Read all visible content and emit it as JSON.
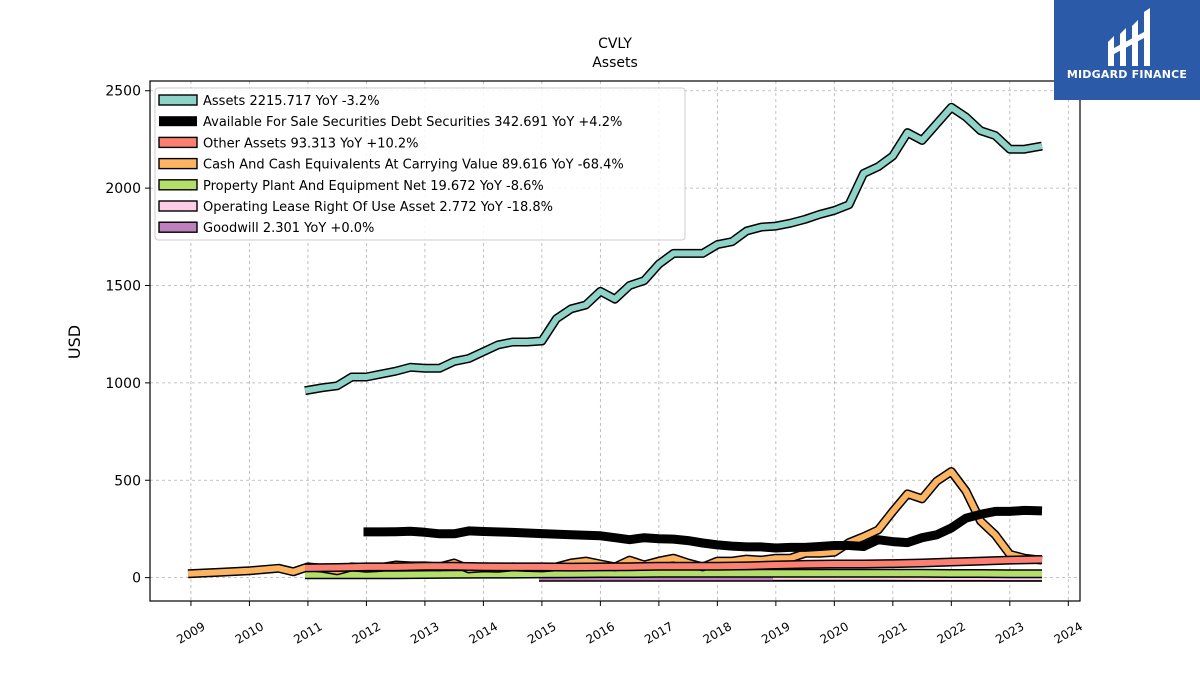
{
  "brand": {
    "name": "MIDGARD FINANCE",
    "color": "#2b5aa8"
  },
  "chart_data": {
    "type": "line",
    "title": "CVLY",
    "subtitle": "Assets",
    "xlabel": "",
    "ylabel": "USD",
    "xlim": [
      2008.3,
      2024.2
    ],
    "ylim": [
      -120,
      2550
    ],
    "x_ticks": [
      "2009",
      "2010",
      "2011",
      "2012",
      "2013",
      "2014",
      "2015",
      "2016",
      "2017",
      "2018",
      "2019",
      "2020",
      "2021",
      "2022",
      "2023",
      "2024"
    ],
    "y_ticks": [
      0,
      500,
      1000,
      1500,
      2000,
      2500
    ],
    "grid": true,
    "legend_position": "top-left",
    "series": [
      {
        "name": "Assets",
        "legend_label": "Assets  2215.717 YoY -3.2%",
        "color": "#8dd3c7",
        "width": 6,
        "points": [
          [
            2010.95,
            960
          ],
          [
            2011.25,
            975
          ],
          [
            2011.5,
            985
          ],
          [
            2011.75,
            1030
          ],
          [
            2012.0,
            1030
          ],
          [
            2012.25,
            1045
          ],
          [
            2012.5,
            1060
          ],
          [
            2012.75,
            1080
          ],
          [
            2013.0,
            1075
          ],
          [
            2013.25,
            1075
          ],
          [
            2013.5,
            1110
          ],
          [
            2013.75,
            1125
          ],
          [
            2014.0,
            1160
          ],
          [
            2014.25,
            1195
          ],
          [
            2014.5,
            1210
          ],
          [
            2014.75,
            1210
          ],
          [
            2015.0,
            1215
          ],
          [
            2015.25,
            1330
          ],
          [
            2015.5,
            1380
          ],
          [
            2015.75,
            1400
          ],
          [
            2016.0,
            1470
          ],
          [
            2016.25,
            1430
          ],
          [
            2016.5,
            1500
          ],
          [
            2016.75,
            1525
          ],
          [
            2017.0,
            1610
          ],
          [
            2017.25,
            1665
          ],
          [
            2017.5,
            1665
          ],
          [
            2017.75,
            1665
          ],
          [
            2018.0,
            1710
          ],
          [
            2018.25,
            1725
          ],
          [
            2018.5,
            1780
          ],
          [
            2018.75,
            1800
          ],
          [
            2019.0,
            1805
          ],
          [
            2019.25,
            1820
          ],
          [
            2019.5,
            1840
          ],
          [
            2019.75,
            1865
          ],
          [
            2020.0,
            1885
          ],
          [
            2020.25,
            1915
          ],
          [
            2020.5,
            2075
          ],
          [
            2020.75,
            2110
          ],
          [
            2021.0,
            2165
          ],
          [
            2021.25,
            2285
          ],
          [
            2021.5,
            2245
          ],
          [
            2021.75,
            2330
          ],
          [
            2022.0,
            2415
          ],
          [
            2022.25,
            2365
          ],
          [
            2022.5,
            2295
          ],
          [
            2022.75,
            2270
          ],
          [
            2023.0,
            2200
          ],
          [
            2023.25,
            2200
          ],
          [
            2023.55,
            2215.717
          ]
        ]
      },
      {
        "name": "Available For Sale Securities Debt Securities",
        "legend_label": "Available For Sale Securities Debt Securities  342.691 YoY +4.2%",
        "color": "#000000",
        "width": 9,
        "points": [
          [
            2011.95,
            235
          ],
          [
            2012.25,
            235
          ],
          [
            2012.5,
            236
          ],
          [
            2012.75,
            238
          ],
          [
            2013.0,
            233
          ],
          [
            2013.25,
            225
          ],
          [
            2013.5,
            225
          ],
          [
            2013.75,
            240
          ],
          [
            2014.0,
            237
          ],
          [
            2014.5,
            232
          ],
          [
            2015.0,
            226
          ],
          [
            2015.5,
            220
          ],
          [
            2016.0,
            215
          ],
          [
            2016.25,
            205
          ],
          [
            2016.5,
            195
          ],
          [
            2016.75,
            205
          ],
          [
            2017.0,
            200
          ],
          [
            2017.25,
            198
          ],
          [
            2017.5,
            190
          ],
          [
            2017.75,
            178
          ],
          [
            2018.0,
            168
          ],
          [
            2018.25,
            162
          ],
          [
            2018.5,
            158
          ],
          [
            2018.75,
            158
          ],
          [
            2019.0,
            152
          ],
          [
            2019.25,
            155
          ],
          [
            2019.5,
            155
          ],
          [
            2019.75,
            160
          ],
          [
            2020.0,
            165
          ],
          [
            2020.25,
            165
          ],
          [
            2020.5,
            160
          ],
          [
            2020.75,
            195
          ],
          [
            2021.0,
            185
          ],
          [
            2021.25,
            180
          ],
          [
            2021.5,
            205
          ],
          [
            2021.75,
            220
          ],
          [
            2022.0,
            255
          ],
          [
            2022.25,
            305
          ],
          [
            2022.5,
            325
          ],
          [
            2022.75,
            340
          ],
          [
            2023.0,
            340
          ],
          [
            2023.25,
            345
          ],
          [
            2023.55,
            342.691
          ]
        ]
      },
      {
        "name": "Other Assets",
        "legend_label": "Other Assets  93.313 YoY +10.2%",
        "color": "#fb8072",
        "width": 6,
        "points": [
          [
            2010.95,
            50
          ],
          [
            2011.5,
            52
          ],
          [
            2012.0,
            55
          ],
          [
            2012.5,
            55
          ],
          [
            2013.0,
            58
          ],
          [
            2013.5,
            58
          ],
          [
            2014.0,
            56
          ],
          [
            2014.5,
            55
          ],
          [
            2015.0,
            55
          ],
          [
            2015.5,
            54
          ],
          [
            2016.0,
            55
          ],
          [
            2016.5,
            56
          ],
          [
            2017.0,
            58
          ],
          [
            2017.5,
            58
          ],
          [
            2018.0,
            58
          ],
          [
            2018.5,
            60
          ],
          [
            2019.0,
            65
          ],
          [
            2019.5,
            68
          ],
          [
            2020.0,
            70
          ],
          [
            2020.5,
            70
          ],
          [
            2021.0,
            72
          ],
          [
            2021.5,
            75
          ],
          [
            2022.0,
            80
          ],
          [
            2022.5,
            85
          ],
          [
            2023.0,
            90
          ],
          [
            2023.55,
            93.313
          ]
        ]
      },
      {
        "name": "Cash And Cash Equivalents At Carrying Value",
        "legend_label": "Cash And Cash Equivalents At Carrying Value  89.616 YoY -68.4%",
        "color": "#fdb462",
        "width": 6,
        "points": [
          [
            2008.95,
            20
          ],
          [
            2009.5,
            28
          ],
          [
            2010.0,
            35
          ],
          [
            2010.5,
            48
          ],
          [
            2010.75,
            30
          ],
          [
            2011.0,
            55
          ],
          [
            2011.25,
            48
          ],
          [
            2011.5,
            35
          ],
          [
            2011.75,
            55
          ],
          [
            2012.0,
            48
          ],
          [
            2012.25,
            52
          ],
          [
            2012.5,
            65
          ],
          [
            2012.75,
            60
          ],
          [
            2013.0,
            60
          ],
          [
            2013.25,
            55
          ],
          [
            2013.5,
            75
          ],
          [
            2013.75,
            45
          ],
          [
            2014.0,
            50
          ],
          [
            2014.25,
            48
          ],
          [
            2014.5,
            55
          ],
          [
            2014.75,
            52
          ],
          [
            2015.0,
            50
          ],
          [
            2015.25,
            55
          ],
          [
            2015.5,
            75
          ],
          [
            2015.75,
            85
          ],
          [
            2016.0,
            70
          ],
          [
            2016.25,
            55
          ],
          [
            2016.5,
            90
          ],
          [
            2016.75,
            65
          ],
          [
            2017.0,
            85
          ],
          [
            2017.25,
            100
          ],
          [
            2017.5,
            75
          ],
          [
            2017.75,
            55
          ],
          [
            2018.0,
            85
          ],
          [
            2018.25,
            85
          ],
          [
            2018.5,
            95
          ],
          [
            2018.75,
            90
          ],
          [
            2019.0,
            100
          ],
          [
            2019.25,
            100
          ],
          [
            2019.5,
            125
          ],
          [
            2019.75,
            125
          ],
          [
            2020.0,
            130
          ],
          [
            2020.25,
            180
          ],
          [
            2020.5,
            210
          ],
          [
            2020.75,
            245
          ],
          [
            2021.0,
            340
          ],
          [
            2021.25,
            430
          ],
          [
            2021.5,
            405
          ],
          [
            2021.75,
            495
          ],
          [
            2022.0,
            545
          ],
          [
            2022.25,
            445
          ],
          [
            2022.5,
            290
          ],
          [
            2022.75,
            220
          ],
          [
            2023.0,
            120
          ],
          [
            2023.25,
            100
          ],
          [
            2023.55,
            89.616
          ]
        ]
      },
      {
        "name": "Property Plant And Equipment Net",
        "legend_label": "Property Plant And Equipment Net  19.672 YoY -8.6%",
        "color": "#b3de69",
        "width": 6,
        "points": [
          [
            2010.95,
            15
          ],
          [
            2011.5,
            15
          ],
          [
            2012.0,
            15
          ],
          [
            2012.5,
            15
          ],
          [
            2013.0,
            16
          ],
          [
            2013.5,
            17
          ],
          [
            2014.0,
            18
          ],
          [
            2014.5,
            18
          ],
          [
            2015.0,
            19
          ],
          [
            2015.5,
            20
          ],
          [
            2016.0,
            21
          ],
          [
            2016.5,
            21
          ],
          [
            2017.0,
            22
          ],
          [
            2017.5,
            22
          ],
          [
            2018.0,
            22
          ],
          [
            2018.5,
            22
          ],
          [
            2019.0,
            22
          ],
          [
            2019.5,
            22
          ],
          [
            2020.0,
            22
          ],
          [
            2020.5,
            22
          ],
          [
            2021.0,
            22
          ],
          [
            2021.5,
            22
          ],
          [
            2022.0,
            21
          ],
          [
            2022.5,
            21
          ],
          [
            2023.0,
            20
          ],
          [
            2023.55,
            19.672
          ]
        ]
      },
      {
        "name": "Operating Lease Right Of Use Asset",
        "legend_label": "Operating Lease Right Of Use Asset  2.772 YoY -18.8%",
        "color": "#fccde5",
        "width": 6,
        "points": [
          [
            2018.95,
            4
          ],
          [
            2019.5,
            4
          ],
          [
            2020.0,
            4
          ],
          [
            2020.5,
            3.8
          ],
          [
            2021.0,
            3.6
          ],
          [
            2021.5,
            3.4
          ],
          [
            2022.0,
            3.3
          ],
          [
            2022.5,
            3.2
          ],
          [
            2023.0,
            2.9
          ],
          [
            2023.55,
            2.772
          ]
        ]
      },
      {
        "name": "Goodwill",
        "legend_label": "Goodwill  2.301 YoY +0.0%",
        "color": "#bc80bd",
        "width": 6,
        "points": [
          [
            2014.95,
            2.301
          ],
          [
            2016.0,
            2.301
          ],
          [
            2017.0,
            2.301
          ],
          [
            2018.0,
            2.301
          ],
          [
            2019.0,
            2.301
          ],
          [
            2020.0,
            2.301
          ],
          [
            2021.0,
            2.301
          ],
          [
            2022.0,
            2.301
          ],
          [
            2023.0,
            2.301
          ],
          [
            2023.55,
            2.301
          ]
        ]
      }
    ]
  }
}
